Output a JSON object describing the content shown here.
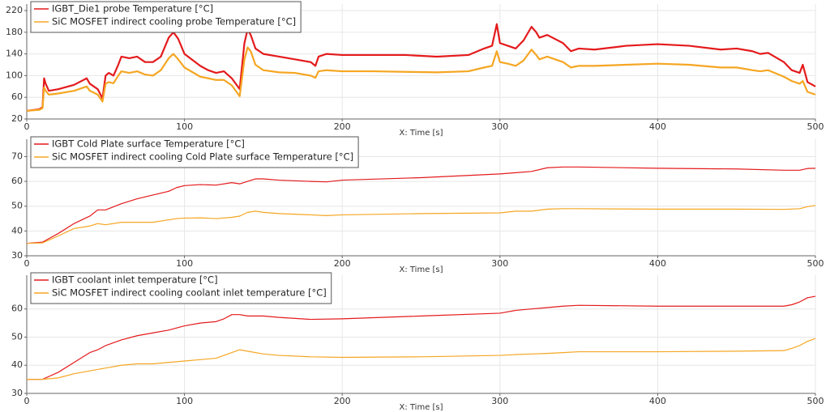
{
  "chart_data": [
    {
      "type": "line",
      "xlabel": "X: Time [s]",
      "grid": true,
      "x": [
        0,
        8,
        10,
        11,
        12,
        14,
        20,
        30,
        38,
        40,
        45,
        48,
        50,
        52,
        55,
        58,
        60,
        65,
        70,
        75,
        80,
        85,
        90,
        93,
        96,
        100,
        110,
        115,
        120,
        125,
        130,
        135,
        138,
        140,
        142,
        145,
        150,
        160,
        170,
        180,
        183,
        185,
        190,
        200,
        220,
        240,
        260,
        280,
        290,
        295,
        298,
        300,
        305,
        310,
        315,
        320,
        323,
        325,
        330,
        340,
        345,
        350,
        360,
        380,
        400,
        420,
        440,
        450,
        460,
        465,
        470,
        480,
        485,
        490,
        492,
        495,
        500
      ],
      "series": [
        {
          "name": "IGBT_Die1 probe Temperature [°C]",
          "color": "#e41a1c",
          "values": [
            35,
            38,
            42,
            95,
            85,
            72,
            75,
            83,
            95,
            85,
            75,
            58,
            100,
            105,
            100,
            120,
            135,
            132,
            135,
            125,
            125,
            135,
            170,
            180,
            168,
            140,
            118,
            110,
            105,
            108,
            95,
            75,
            160,
            185,
            175,
            150,
            140,
            135,
            130,
            125,
            118,
            135,
            140,
            138,
            138,
            138,
            135,
            138,
            150,
            155,
            195,
            160,
            155,
            150,
            165,
            190,
            180,
            170,
            175,
            160,
            145,
            150,
            148,
            155,
            158,
            155,
            148,
            150,
            145,
            140,
            142,
            125,
            110,
            105,
            120,
            88,
            80
          ]
        },
        {
          "name": "SiC MOSFET indirect cooling probe Temperature [°C]",
          "color": "#f5a623",
          "values": [
            35,
            37,
            40,
            78,
            72,
            65,
            67,
            72,
            80,
            72,
            65,
            52,
            85,
            88,
            86,
            100,
            108,
            105,
            108,
            102,
            100,
            110,
            132,
            140,
            130,
            115,
            98,
            95,
            92,
            92,
            82,
            62,
            130,
            152,
            145,
            120,
            110,
            106,
            105,
            100,
            96,
            108,
            110,
            108,
            108,
            107,
            106,
            108,
            115,
            118,
            145,
            125,
            122,
            118,
            128,
            148,
            138,
            130,
            135,
            125,
            115,
            118,
            118,
            120,
            122,
            120,
            115,
            115,
            110,
            108,
            110,
            98,
            90,
            85,
            90,
            70,
            65
          ]
        }
      ],
      "xlim": [
        0,
        500
      ],
      "xticks": [
        0,
        100,
        200,
        300,
        400,
        500
      ],
      "ylim": [
        20,
        232
      ],
      "yticks": [
        20,
        60,
        100,
        140,
        180,
        220
      ]
    },
    {
      "type": "line",
      "xlabel": "X: Time [s]",
      "grid": true,
      "x": [
        0,
        10,
        20,
        30,
        40,
        45,
        50,
        60,
        70,
        80,
        90,
        95,
        100,
        110,
        120,
        130,
        135,
        140,
        145,
        150,
        160,
        180,
        190,
        200,
        250,
        300,
        310,
        320,
        330,
        340,
        350,
        400,
        450,
        480,
        490,
        495,
        500
      ],
      "series": [
        {
          "name": "IGBT Cold Plate surface Temperature [°C]",
          "color": "#e41a1c",
          "values": [
            35,
            35.5,
            39,
            43,
            46,
            48.5,
            48.5,
            51,
            53,
            54.5,
            56,
            57.5,
            58.3,
            58.7,
            58.5,
            59.5,
            59,
            60,
            61,
            61,
            60.5,
            60,
            59.8,
            60.5,
            61.5,
            63,
            63.5,
            64,
            65.5,
            65.8,
            65.8,
            65.3,
            65,
            64.5,
            64.5,
            65.2,
            65.3
          ]
        },
        {
          "name": "SiC MOSFET indirect cooling Cold Plate surface Temperature [°C]",
          "color": "#f5a623",
          "values": [
            35,
            35.2,
            38,
            41,
            42,
            43,
            42.5,
            43.5,
            43.5,
            43.5,
            44.5,
            45,
            45.2,
            45.3,
            45,
            45.5,
            46,
            47.5,
            48,
            47.5,
            47,
            46.5,
            46.2,
            46.5,
            47,
            47.3,
            48,
            48,
            48.8,
            49,
            49,
            48.8,
            48.8,
            48.7,
            49,
            49.8,
            50.3
          ]
        }
      ],
      "xlim": [
        0,
        500
      ],
      "xticks": [
        0,
        100,
        200,
        300,
        400,
        500
      ],
      "ylim": [
        30,
        77
      ],
      "yticks": [
        30,
        40,
        50,
        60,
        70
      ]
    },
    {
      "type": "line",
      "xlabel": "X: Time [s]",
      "grid": true,
      "x": [
        0,
        10,
        20,
        30,
        40,
        45,
        50,
        60,
        70,
        80,
        90,
        100,
        110,
        120,
        125,
        130,
        135,
        140,
        150,
        160,
        180,
        200,
        250,
        300,
        310,
        320,
        330,
        340,
        350,
        400,
        450,
        480,
        485,
        490,
        495,
        500
      ],
      "series": [
        {
          "name": "IGBT coolant inlet temperature [°C]",
          "color": "#e41a1c",
          "values": [
            35,
            35,
            37.5,
            41,
            44.5,
            45.5,
            47,
            49,
            50.5,
            51.5,
            52.5,
            54,
            55,
            55.5,
            56.5,
            58,
            58,
            57.5,
            57.5,
            57,
            56.3,
            56.5,
            57.5,
            58.5,
            59.5,
            60,
            60.5,
            61,
            61.3,
            61,
            61,
            61,
            61.5,
            62.5,
            64,
            64.5
          ]
        },
        {
          "name": "SiC MOSFET indirect cooling coolant inlet temperature [°C]",
          "color": "#f5a623",
          "values": [
            35,
            35,
            35.5,
            37,
            38,
            38.5,
            39,
            40,
            40.5,
            40.5,
            41,
            41.5,
            42,
            42.5,
            43.5,
            44.5,
            45.5,
            45,
            44,
            43.5,
            43,
            42.8,
            43,
            43.5,
            43.8,
            44,
            44.2,
            44.5,
            44.8,
            44.8,
            45,
            45.2,
            46,
            47,
            48.5,
            49.5
          ]
        }
      ],
      "xlim": [
        0,
        500
      ],
      "xticks": [
        0,
        100,
        200,
        300,
        400,
        500
      ],
      "ylim": [
        30,
        72
      ],
      "yticks": [
        30,
        40,
        50,
        60
      ]
    }
  ]
}
